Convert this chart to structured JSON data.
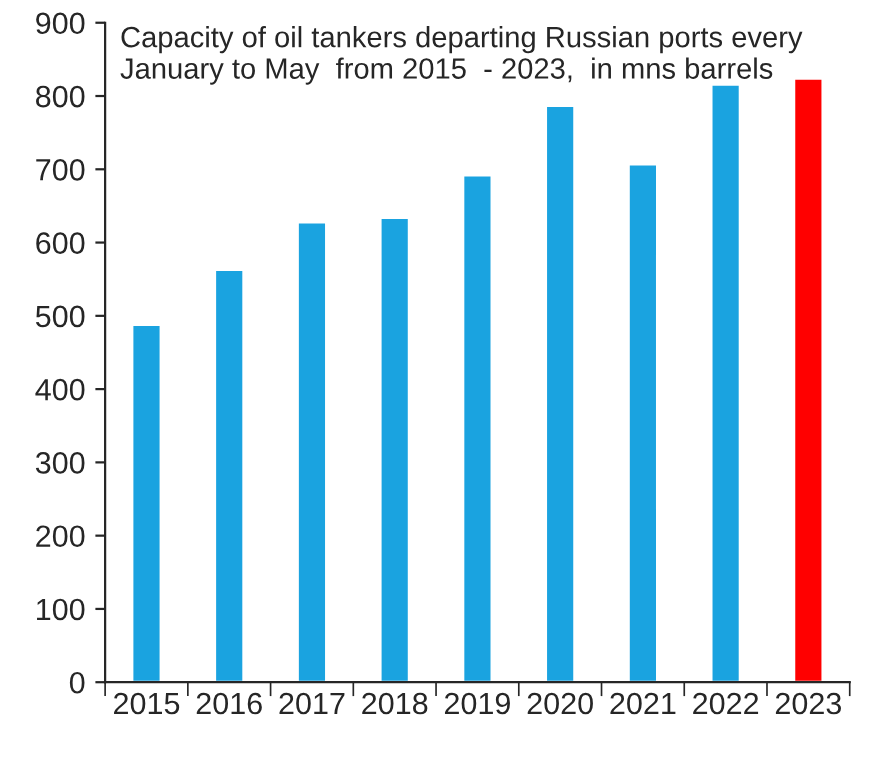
{
  "chart_data": {
    "type": "bar",
    "title": "Capacity of oil tankers departing Russian ports every January to May  from 2015  - 2023,  in mns barrels",
    "categories": [
      "2015",
      "2016",
      "2017",
      "2018",
      "2019",
      "2020",
      "2021",
      "2022",
      "2023"
    ],
    "values": [
      488,
      563,
      628,
      634,
      692,
      787,
      707,
      816,
      824
    ],
    "colors": [
      "#1aa3e0",
      "#1aa3e0",
      "#1aa3e0",
      "#1aa3e0",
      "#1aa3e0",
      "#1aa3e0",
      "#1aa3e0",
      "#1aa3e0",
      "#ff0000"
    ],
    "ylim": [
      0,
      900
    ],
    "yticks": [
      0,
      100,
      200,
      300,
      400,
      500,
      600,
      700,
      800,
      900
    ],
    "grid": false,
    "legend": false
  }
}
